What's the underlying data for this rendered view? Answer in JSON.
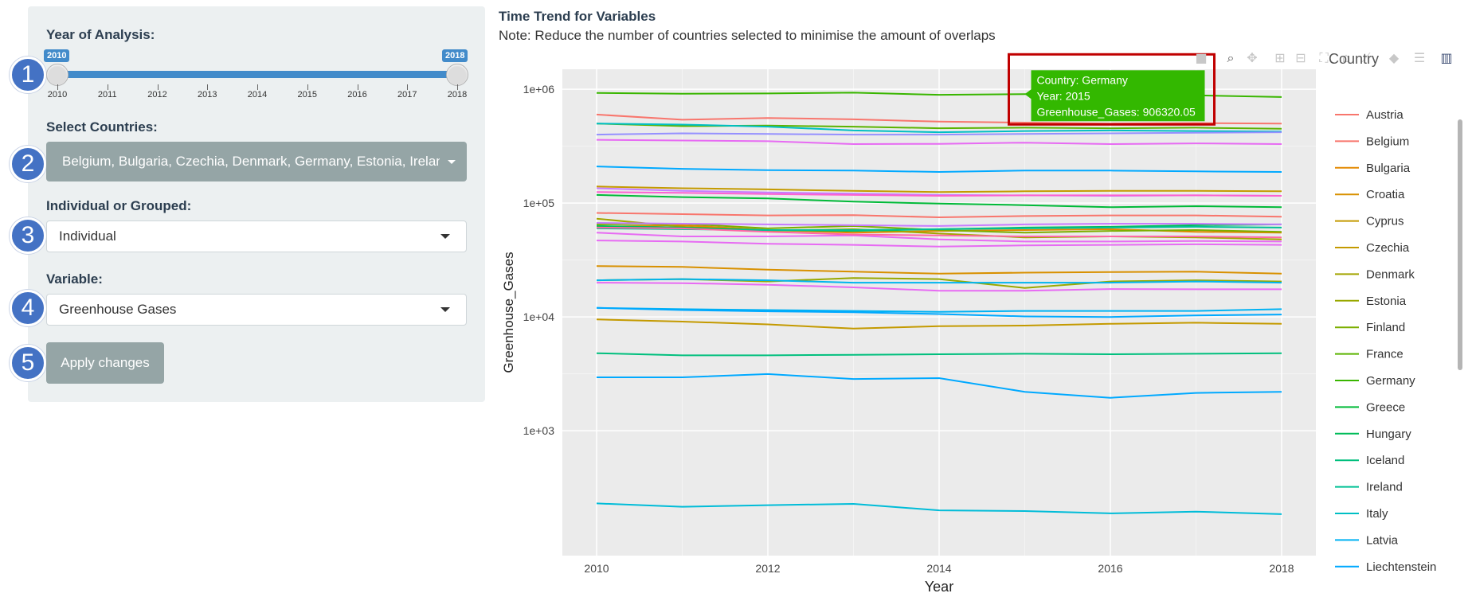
{
  "sidebar": {
    "year_label": "Year of Analysis:",
    "slider": {
      "min_value": "2010",
      "max_value": "2018",
      "ticks": [
        "2010",
        "2011",
        "2012",
        "2013",
        "2014",
        "2015",
        "2016",
        "2017",
        "2018"
      ]
    },
    "countries_label": "Select Countries:",
    "countries_value": "Belgium, Bulgaria, Czechia, Denmark, Germany, Estonia, Ireland",
    "grouping_label": "Individual or Grouped:",
    "grouping_value": "Individual",
    "variable_label": "Variable:",
    "variable_value": "Greenhouse Gases",
    "apply_label": "Apply changes",
    "step_badges": [
      "1",
      "2",
      "3",
      "4",
      "5"
    ],
    "badge_color": "#4472c4"
  },
  "main": {
    "title": "Time Trend for Variables",
    "note": "Note: Reduce the number of countries selected to minimise the amount of overlaps"
  },
  "toolbar": {
    "icons": [
      "camera-icon",
      "zoom-icon",
      "pan-icon",
      "zoom-in-icon",
      "zoom-out-icon",
      "autoscale-icon",
      "reset-axes-icon",
      "spike-lines-icon",
      "hover-closest-icon",
      "hover-compare-icon",
      "plotly-logo-icon"
    ]
  },
  "chart_data": {
    "type": "line",
    "xlabel": "Year",
    "ylabel": "Greenhouse_Gases",
    "yscale": "log",
    "xlim": [
      2009.6,
      2018.4
    ],
    "ylim": [
      80,
      1500000
    ],
    "x": [
      2010,
      2011,
      2012,
      2013,
      2014,
      2015,
      2016,
      2017,
      2018
    ],
    "x_ticks": [
      "2010",
      "2012",
      "2014",
      "2016",
      "2018"
    ],
    "y_ticks": [
      "1e+03",
      "1e+04",
      "1e+05",
      "1e+06"
    ],
    "legend_title": "Country",
    "legend_position": "right",
    "legend_visible": [
      "Austria",
      "Belgium",
      "Bulgaria",
      "Croatia",
      "Cyprus",
      "Czechia",
      "Denmark",
      "Estonia",
      "Finland",
      "France",
      "Germany",
      "Greece",
      "Hungary",
      "Iceland",
      "Ireland",
      "Italy",
      "Latvia",
      "Liechtenstein"
    ],
    "tooltip": {
      "lines": [
        "Country: Germany",
        "Year: 2015",
        "Greenhouse_Gases: 906320.05"
      ],
      "color": "#33b800",
      "highlight_color": "#c00000"
    },
    "series": [
      {
        "color": "#f8766d",
        "values": [
          600000,
          540000,
          560000,
          545000,
          520000,
          510000,
          500000,
          505000,
          500000
        ]
      },
      {
        "color": "#f8766d",
        "values": [
          82000,
          80000,
          78000,
          78500,
          75000,
          77000,
          78000,
          78000,
          76000
        ]
      },
      {
        "color": "#e38900",
        "values": [
          62000,
          64000,
          58000,
          55000,
          57000,
          58000,
          59000,
          56000,
          55000
        ]
      },
      {
        "color": "#d89000",
        "values": [
          28000,
          27500,
          26000,
          25000,
          24000,
          24500,
          24800,
          25000,
          24000
        ]
      },
      {
        "color": "#c49a00",
        "values": [
          9500,
          9100,
          8600,
          7900,
          8300,
          8400,
          8700,
          8900,
          8700
        ]
      },
      {
        "color": "#c49a00",
        "values": [
          140000,
          135000,
          132000,
          128000,
          125000,
          127000,
          128000,
          128000,
          127000
        ]
      },
      {
        "color": "#a3a500",
        "values": [
          73000,
          62000,
          57000,
          59000,
          54000,
          50000,
          51000,
          50000,
          48000
        ]
      },
      {
        "color": "#99a800",
        "values": [
          21000,
          21500,
          20500,
          22000,
          21500,
          18000,
          20500,
          21000,
          20500
        ]
      },
      {
        "color": "#7cae00",
        "values": [
          65000,
          66000,
          60000,
          63000,
          58000,
          55000,
          57000,
          58000,
          56000
        ]
      },
      {
        "color": "#5bb300",
        "values": [
          500000,
          475000,
          480000,
          470000,
          455000,
          460000,
          455000,
          460000,
          450000
        ]
      },
      {
        "color": "#39b600",
        "values": [
          930000,
          915000,
          920000,
          935000,
          895000,
          906320,
          905000,
          885000,
          855000
        ]
      },
      {
        "color": "#00ba38",
        "values": [
          118000,
          113000,
          110000,
          103000,
          99000,
          96000,
          92000,
          94000,
          92000
        ]
      },
      {
        "color": "#00bc59",
        "values": [
          63000,
          61000,
          58000,
          57000,
          59000,
          61000,
          62000,
          64000,
          65000
        ]
      },
      {
        "color": "#00bf7d",
        "values": [
          4800,
          4600,
          4600,
          4650,
          4700,
          4750,
          4700,
          4750,
          4800
        ]
      },
      {
        "color": "#00c094",
        "values": [
          60000,
          59000,
          58000,
          58000,
          59000,
          60000,
          61000,
          62000,
          61000
        ]
      },
      {
        "color": "#00bfc4",
        "values": [
          500000,
          490000,
          470000,
          435000,
          420000,
          430000,
          435000,
          430000,
          425000
        ]
      },
      {
        "color": "#00b2f3",
        "values": [
          12000,
          11700,
          11500,
          11300,
          11100,
          11300,
          11300,
          11300,
          11700
        ]
      },
      {
        "color": "#00bcd8",
        "values": [
          230,
          215,
          222,
          228,
          200,
          197,
          188,
          195,
          185
        ]
      },
      {
        "color": "#00a9ff",
        "values": [
          210000,
          200000,
          195000,
          193000,
          188000,
          193000,
          193000,
          190000,
          188000
        ]
      },
      {
        "color": "#00a9ff",
        "values": [
          2950,
          2950,
          3150,
          2850,
          2900,
          2200,
          1950,
          2150,
          2200
        ]
      },
      {
        "color": "#00a9ff",
        "values": [
          12000,
          11500,
          11200,
          11000,
          10600,
          10100,
          10000,
          10300,
          10500
        ]
      },
      {
        "color": "#00b5ee",
        "values": [
          21000,
          21500,
          21000,
          20000,
          20000,
          20000,
          20000,
          20500,
          20000
        ]
      },
      {
        "color": "#9590ff",
        "values": [
          400000,
          410000,
          405000,
          400000,
          400000,
          405000,
          410000,
          415000,
          420000
        ]
      },
      {
        "color": "#c77cff",
        "values": [
          135000,
          128000,
          124000,
          121000,
          118000,
          117000,
          116000,
          117000,
          116000
        ]
      },
      {
        "color": "#c77cff",
        "values": [
          67000,
          66000,
          65000,
          64000,
          63000,
          65000,
          66000,
          66000,
          65000
        ]
      },
      {
        "color": "#e76bf3",
        "values": [
          360000,
          355000,
          350000,
          330000,
          332000,
          340000,
          330000,
          335000,
          330000
        ]
      },
      {
        "color": "#e76bf3",
        "values": [
          20000,
          19800,
          19200,
          18200,
          17000,
          17000,
          17600,
          17500,
          17500
        ]
      },
      {
        "color": "#e76bf3",
        "values": [
          47000,
          46000,
          44000,
          43000,
          41500,
          42500,
          43000,
          43500,
          43000
        ]
      },
      {
        "color": "#e76bf3",
        "values": [
          55000,
          51000,
          51000,
          52000,
          48000,
          46000,
          46000,
          46500,
          46000
        ]
      },
      {
        "color": "#fd61d1",
        "values": [
          125000,
          123000,
          120000,
          118000,
          116000,
          117000,
          117000,
          117000,
          116000
        ]
      },
      {
        "color": "#ff67a4",
        "values": [
          61000,
          60000,
          56000,
          53000,
          52000,
          51000,
          51000,
          51000,
          50000
        ]
      }
    ]
  }
}
